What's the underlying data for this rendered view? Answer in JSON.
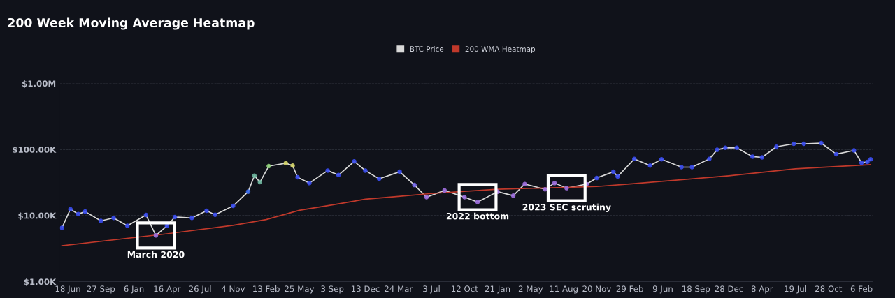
{
  "chart_data": {
    "type": "line",
    "title": "200 Week Moving Average Heatmap",
    "legend": "top",
    "grid": "y",
    "log": "y",
    "marker": "circle",
    "xlim": [
      "2019-05-25",
      "2026-03-12"
    ],
    "xticks": [
      {
        "value": "2019-06-18",
        "label": "18 Jun"
      },
      {
        "value": "2019-09-27",
        "label": "27 Sep"
      },
      {
        "value": "2020-01-06",
        "label": "6 Jan"
      },
      {
        "value": "2020-04-16",
        "label": "16 Apr"
      },
      {
        "value": "2020-07-26",
        "label": "26 Jul"
      },
      {
        "value": "2020-11-04",
        "label": "4 Nov"
      },
      {
        "value": "2021-02-13",
        "label": "13 Feb"
      },
      {
        "value": "2021-05-25",
        "label": "25 May"
      },
      {
        "value": "2021-09-03",
        "label": "3 Sep"
      },
      {
        "value": "2021-12-13",
        "label": "13 Dec"
      },
      {
        "value": "2022-03-24",
        "label": "24 Mar"
      },
      {
        "value": "2022-07-03",
        "label": "3 Jul"
      },
      {
        "value": "2022-10-12",
        "label": "12 Oct"
      },
      {
        "value": "2023-01-21",
        "label": "21 Jan"
      },
      {
        "value": "2023-05-02",
        "label": "2 May"
      },
      {
        "value": "2023-08-11",
        "label": "11 Aug"
      },
      {
        "value": "2023-11-20",
        "label": "20 Nov"
      },
      {
        "value": "2024-02-29",
        "label": "29 Feb"
      },
      {
        "value": "2024-06-09",
        "label": "9 Jun"
      },
      {
        "value": "2024-09-18",
        "label": "18 Sep"
      },
      {
        "value": "2024-12-28",
        "label": "28 Dec"
      },
      {
        "value": "2025-04-08",
        "label": "8 Apr"
      },
      {
        "value": "2025-07-19",
        "label": "19 Jul"
      },
      {
        "value": "2025-10-28",
        "label": "28 Oct"
      },
      {
        "value": "2026-02-06",
        "label": "6 Feb"
      }
    ],
    "ylim": [
      1000,
      1000000
    ],
    "yticks": [
      {
        "value": 1000,
        "label": "$1.00K"
      },
      {
        "value": 10000,
        "label": "$10.00K"
      },
      {
        "value": 100000,
        "label": "$100.00K"
      },
      {
        "value": 1000000,
        "label": "$1.00M"
      }
    ],
    "series": [
      {
        "name": "BTC Price",
        "color": "#d9d9d9",
        "x": [
          "2019-05-31",
          "2019-06-26",
          "2019-07-20",
          "2019-08-10",
          "2019-09-27",
          "2019-11-05",
          "2019-12-17",
          "2020-02-12",
          "2020-03-13",
          "2020-04-16",
          "2020-05-10",
          "2020-07-01",
          "2020-08-15",
          "2020-09-10",
          "2020-11-04",
          "2020-12-20",
          "2021-01-08",
          "2021-01-25",
          "2021-02-21",
          "2021-04-14",
          "2021-05-05",
          "2021-05-20",
          "2021-06-25",
          "2021-08-20",
          "2021-09-22",
          "2021-11-09",
          "2021-12-13",
          "2022-01-24",
          "2022-03-28",
          "2022-05-12",
          "2022-06-18",
          "2022-08-12",
          "2022-10-12",
          "2022-11-21",
          "2023-01-21",
          "2023-03-10",
          "2023-04-14",
          "2023-06-15",
          "2023-07-14",
          "2023-08-20",
          "2023-10-20",
          "2023-11-20",
          "2024-01-10",
          "2024-01-23",
          "2024-03-14",
          "2024-05-01",
          "2024-06-05",
          "2024-08-05",
          "2024-09-06",
          "2024-10-29",
          "2024-11-22",
          "2024-12-17",
          "2025-01-21",
          "2025-03-10",
          "2025-04-08",
          "2025-05-22",
          "2025-07-14",
          "2025-08-14",
          "2025-10-06",
          "2025-11-21",
          "2026-01-14",
          "2026-02-06",
          "2026-02-24",
          "2026-03-06"
        ],
        "values": [
          6500,
          12500,
          10500,
          11500,
          8300,
          9200,
          7000,
          10200,
          5000,
          7000,
          9500,
          9200,
          11800,
          10300,
          14000,
          23000,
          40000,
          32000,
          56000,
          62000,
          57000,
          38000,
          31000,
          48000,
          41000,
          66000,
          48000,
          36000,
          46000,
          29000,
          19000,
          24000,
          19000,
          16000,
          23000,
          20000,
          30000,
          25000,
          31000,
          26000,
          30000,
          37000,
          46000,
          39000,
          72000,
          57000,
          71000,
          54000,
          54000,
          72000,
          99000,
          106000,
          106000,
          78000,
          76000,
          110000,
          122000,
          122000,
          125000,
          85000,
          97000,
          63000,
          65000,
          71000
        ],
        "colors": [
          "#3a4cf0",
          "#3a4cf0",
          "#3a4cf0",
          "#3a4cf0",
          "#3a4cf0",
          "#3a4cf0",
          "#3a4cf0",
          "#3a4cf0",
          "#a070e0",
          "#3a4cf0",
          "#3a4cf0",
          "#3a4cf0",
          "#3a4cf0",
          "#3a4cf0",
          "#3a4cf0",
          "#3a6cf0",
          "#6fb7a0",
          "#6fb7a0",
          "#8fd07a",
          "#d6d66a",
          "#d6d66a",
          "#3a4cf0",
          "#3a4cf0",
          "#3a4cf0",
          "#3a4cf0",
          "#3a4cf0",
          "#3a4cf0",
          "#3a4cf0",
          "#3a4cf0",
          "#7a6cf0",
          "#a070e0",
          "#a070e0",
          "#a070e0",
          "#a070e0",
          "#a070e0",
          "#a070e0",
          "#a070e0",
          "#a070e0",
          "#a070e0",
          "#a070e0",
          "#a070e0",
          "#3a4cf0",
          "#3a4cf0",
          "#3a4cf0",
          "#3a4cf0",
          "#3a4cf0",
          "#3a4cf0",
          "#3a4cf0",
          "#3a4cf0",
          "#3a4cf0",
          "#3a4cf0",
          "#3a4cf0",
          "#3a4cf0",
          "#3a4cf0",
          "#3a4cf0",
          "#3a4cf0",
          "#3a4cf0",
          "#3a4cf0",
          "#3a4cf0",
          "#3a4cf0",
          "#3a4cf0",
          "#3a4cf0",
          "#3a4cf0",
          "#3a4cf0"
        ]
      },
      {
        "name": "200 WMA Heatmap",
        "color": "#c0392b",
        "marker": "none",
        "x": [
          "2019-05-31",
          "2020-04-16",
          "2020-11-04",
          "2021-02-13",
          "2021-05-25",
          "2021-09-03",
          "2021-12-13",
          "2022-03-24",
          "2022-07-03",
          "2023-01-21",
          "2023-11-20",
          "2024-02-29",
          "2024-12-28",
          "2025-07-19",
          "2026-03-06"
        ],
        "values": [
          3500,
          5300,
          7100,
          8700,
          12000,
          14500,
          17700,
          19500,
          21600,
          25000,
          27500,
          30000,
          40000,
          51000,
          59000
        ]
      }
    ],
    "annotations": [
      {
        "text": "March 2020",
        "x": "2020-03-13",
        "y": 5000
      },
      {
        "text": "2022 bottom",
        "x": "2022-11-21",
        "y": 19000
      },
      {
        "text": "2023 SEC scrutiny",
        "x": "2023-08-20",
        "y": 26000
      }
    ]
  }
}
